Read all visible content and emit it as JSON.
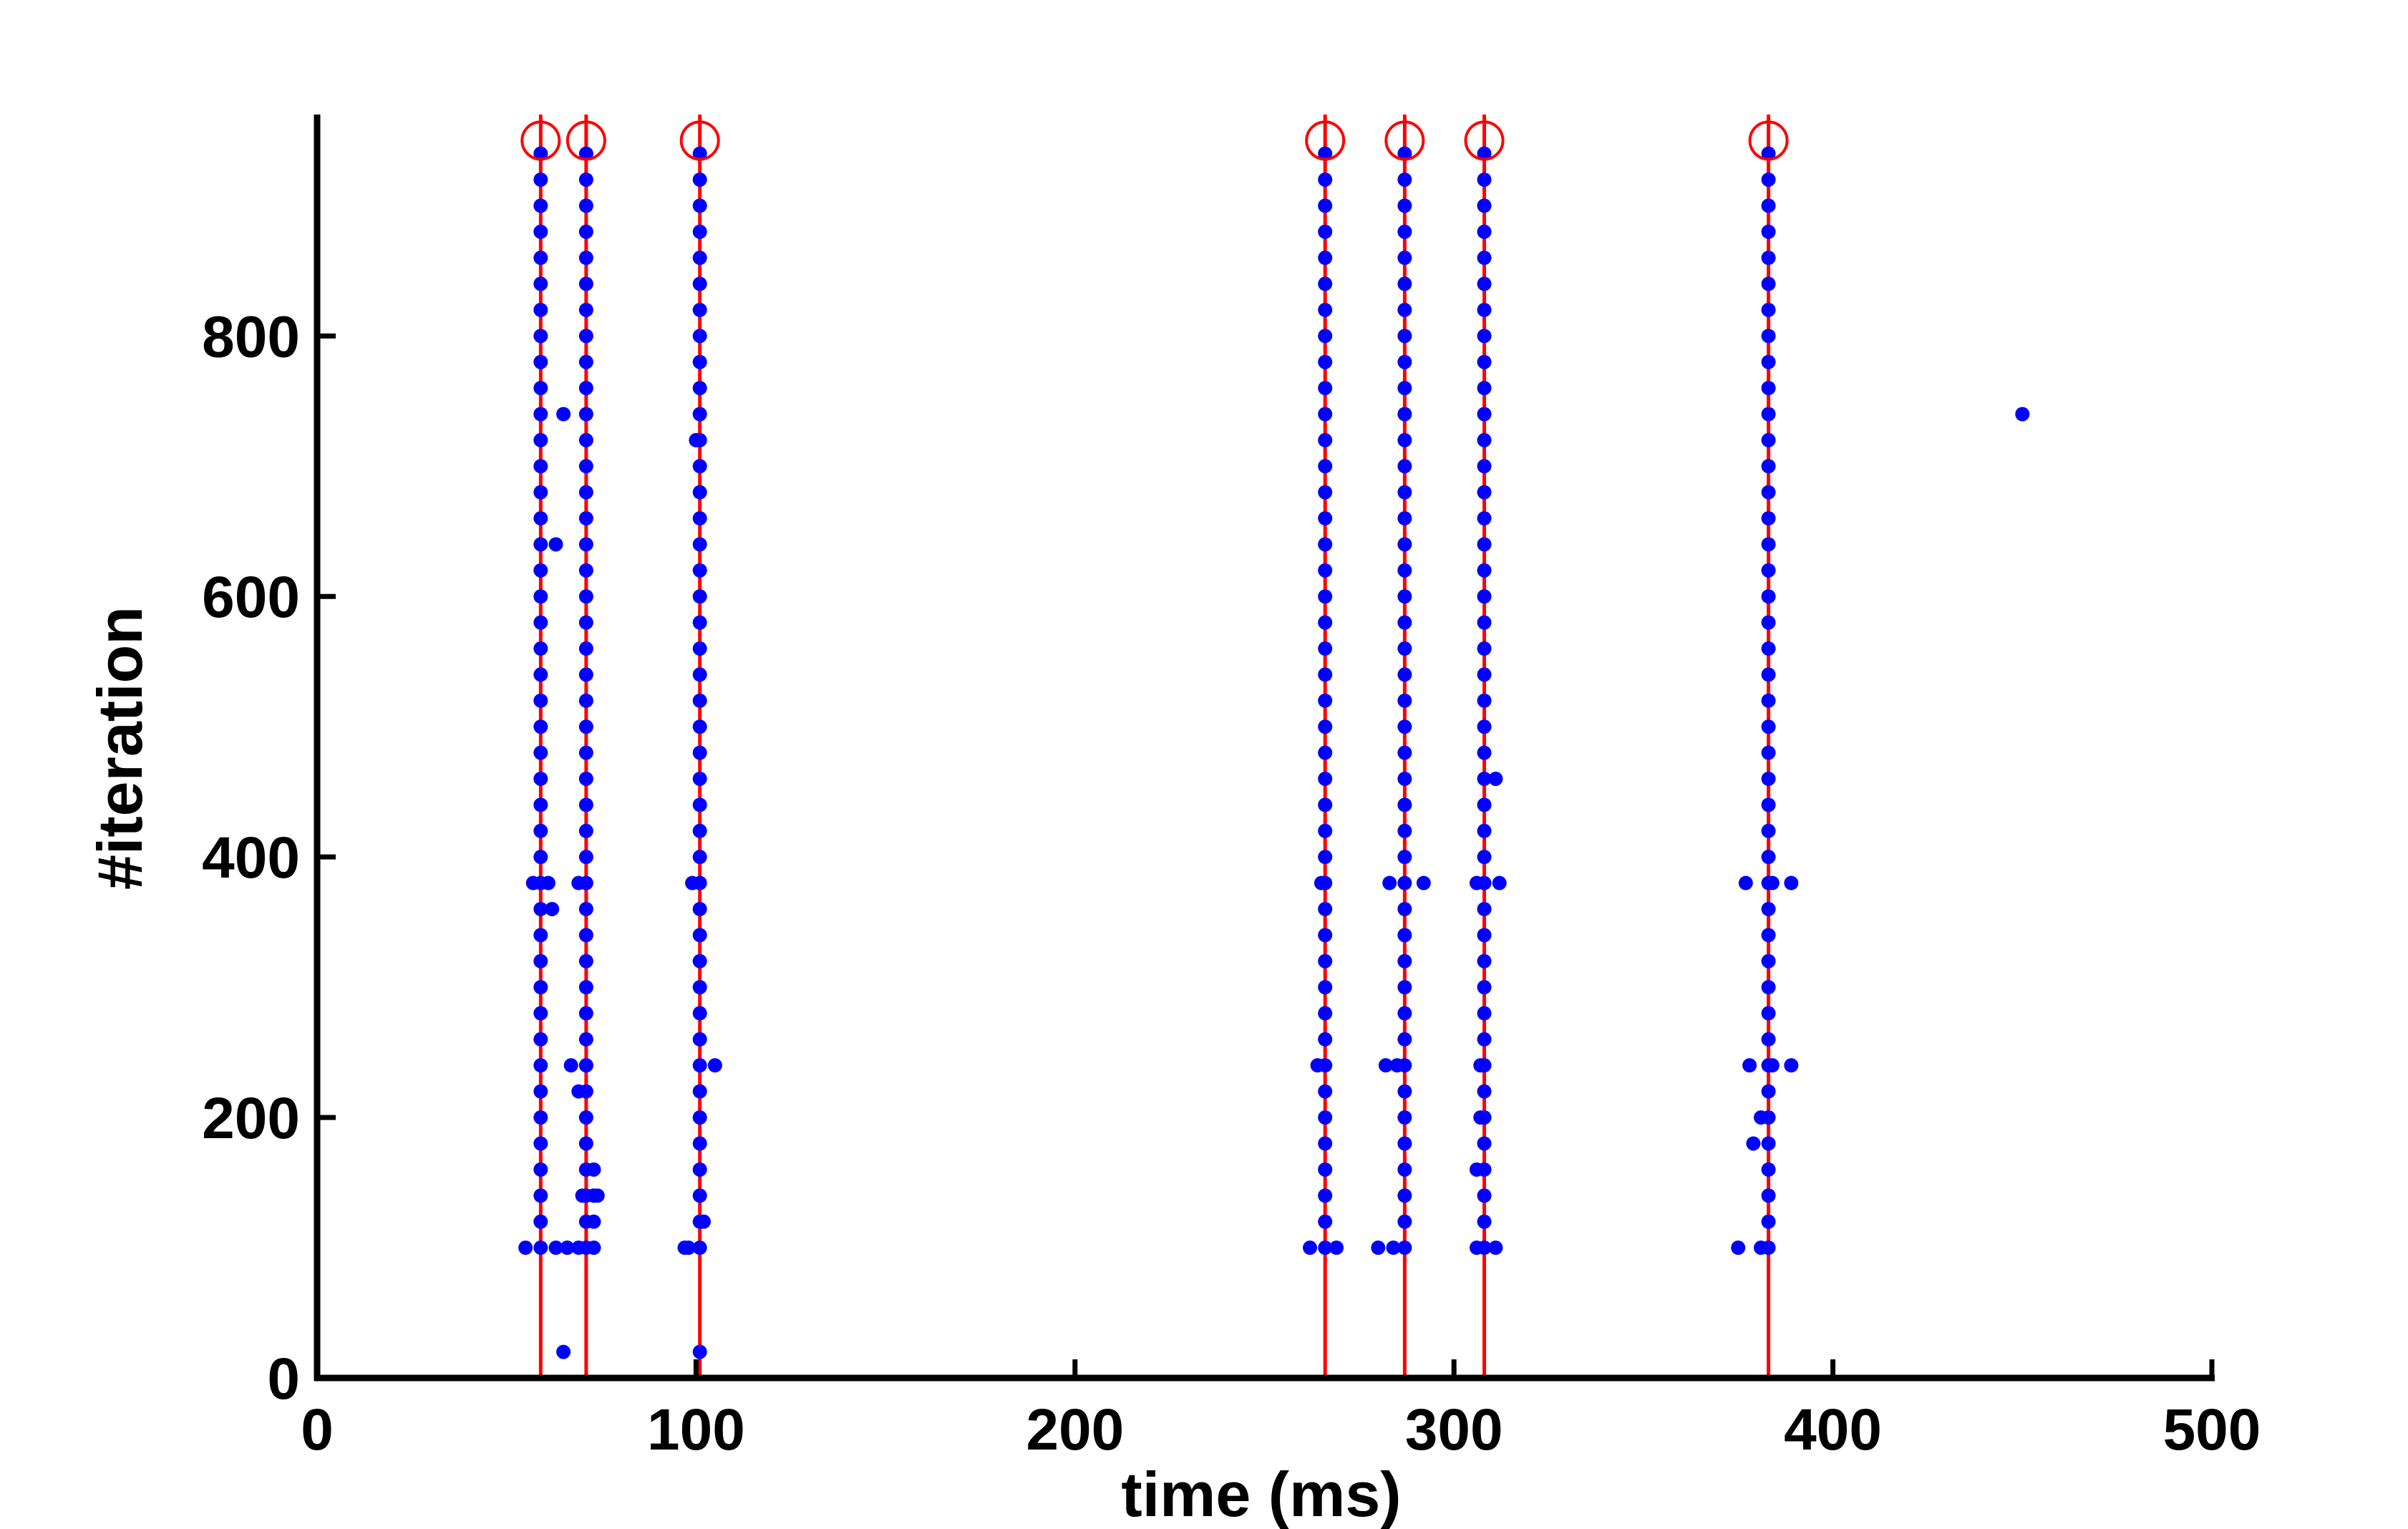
{
  "chart_data": {
    "type": "scatter",
    "title": "",
    "xlabel": "time (ms)",
    "ylabel": "#iteration",
    "xlim": [
      0,
      500
    ],
    "ylim": [
      0,
      970
    ],
    "x_ticks": [
      0,
      100,
      200,
      300,
      400,
      500
    ],
    "y_ticks": [
      0,
      200,
      400,
      600,
      800
    ],
    "x_tick_labels": [
      "0",
      "100",
      "200",
      "300",
      "400",
      "500"
    ],
    "y_tick_labels": [
      "0",
      "200",
      "400",
      "600",
      "800"
    ],
    "grid": false,
    "legend": "none",
    "colors": {
      "points": "#0000ff",
      "lines": "#ff0000",
      "axis": "#000000"
    },
    "vertical_lines": {
      "x": [
        59,
        71,
        101,
        266,
        287,
        308,
        383
      ],
      "y_range": [
        0,
        970
      ]
    },
    "circle_markers": {
      "x": [
        59,
        71,
        101,
        266,
        287,
        308,
        383
      ],
      "y": 950
    },
    "column_points": {
      "x": [
        59,
        71,
        101,
        266,
        287,
        308,
        383
      ],
      "y_start": 100,
      "y_end": 950,
      "step": 20
    },
    "extra_points": [
      [
        55,
        100
      ],
      [
        63,
        100
      ],
      [
        66,
        100
      ],
      [
        69,
        100
      ],
      [
        73,
        100
      ],
      [
        65,
        20
      ],
      [
        57,
        380
      ],
      [
        61,
        380
      ],
      [
        62,
        360
      ],
      [
        63,
        640
      ],
      [
        65,
        740
      ],
      [
        67,
        240
      ],
      [
        69,
        380
      ],
      [
        69,
        220
      ],
      [
        70,
        140
      ],
      [
        71,
        240
      ],
      [
        73,
        140
      ],
      [
        73,
        160
      ],
      [
        73,
        120
      ],
      [
        74,
        140
      ],
      [
        97,
        100
      ],
      [
        98,
        100
      ],
      [
        99,
        380
      ],
      [
        100,
        720
      ],
      [
        102,
        120
      ],
      [
        105,
        240
      ],
      [
        101,
        20
      ],
      [
        265,
        380
      ],
      [
        264,
        240
      ],
      [
        262,
        100
      ],
      [
        269,
        100
      ],
      [
        280,
        100
      ],
      [
        282,
        240
      ],
      [
        283,
        380
      ],
      [
        284,
        100
      ],
      [
        285,
        240
      ],
      [
        292,
        380
      ],
      [
        306,
        380
      ],
      [
        307,
        240
      ],
      [
        307,
        200
      ],
      [
        306,
        160
      ],
      [
        306,
        100
      ],
      [
        311,
        100
      ],
      [
        311,
        460
      ],
      [
        312,
        380
      ],
      [
        375,
        100
      ],
      [
        377,
        380
      ],
      [
        378,
        240
      ],
      [
        379,
        180
      ],
      [
        381,
        200
      ],
      [
        381,
        100
      ],
      [
        384,
        380
      ],
      [
        384,
        240
      ],
      [
        389,
        380
      ],
      [
        389,
        240
      ],
      [
        450,
        740
      ]
    ]
  }
}
